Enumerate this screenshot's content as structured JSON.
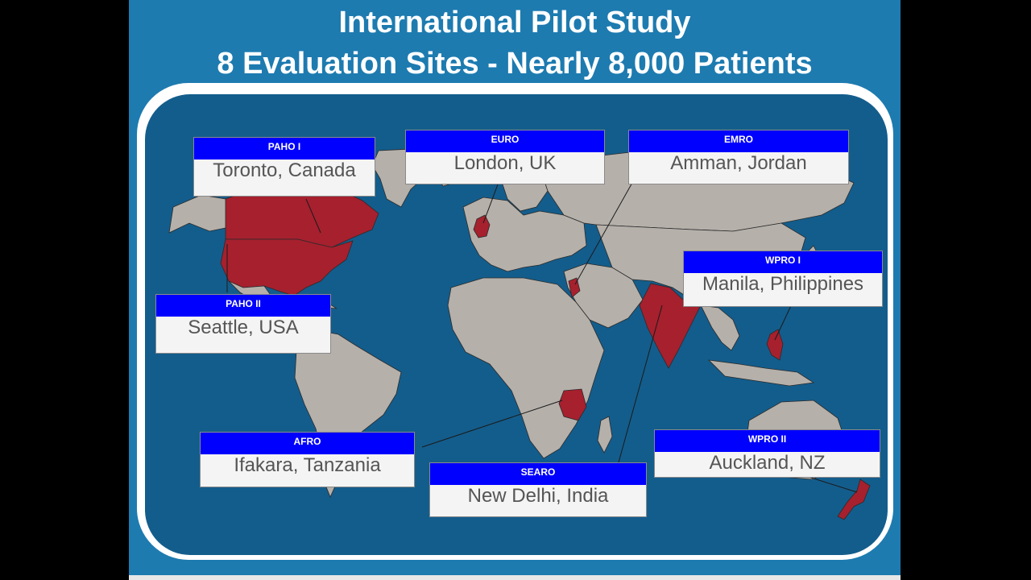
{
  "slide": {
    "title_line1": "International Pilot Study",
    "title_line2": "8 Evaluation Sites - Nearly 8,000 Patients"
  },
  "colors": {
    "slide_background": "#1d7bb0",
    "ocean": "#135d8c",
    "land": "#b5b0aa",
    "highlighted_country": "#a6202e",
    "callout_header": "#0000ff",
    "callout_body": "#f4f4f4"
  },
  "sites": [
    {
      "id": "paho-i",
      "region": "PAHO I",
      "city": "Toronto, Canada"
    },
    {
      "id": "euro",
      "region": "EURO",
      "city": "London, UK"
    },
    {
      "id": "emro",
      "region": "EMRO",
      "city": "Amman, Jordan"
    },
    {
      "id": "wpro-i",
      "region": "WPRO I",
      "city": "Manila, Philippines"
    },
    {
      "id": "paho-ii",
      "region": "PAHO II",
      "city": "Seattle, USA"
    },
    {
      "id": "afro",
      "region": "AFRO",
      "city": "Ifakara, Tanzania"
    },
    {
      "id": "searo",
      "region": "SEARO",
      "city": "New Delhi, India"
    },
    {
      "id": "wpro-ii",
      "region": "WPRO II",
      "city": "Auckland, NZ"
    }
  ],
  "highlighted_countries": [
    "Canada",
    "USA",
    "UK",
    "Jordan",
    "India",
    "Tanzania",
    "Philippines",
    "New Zealand"
  ]
}
